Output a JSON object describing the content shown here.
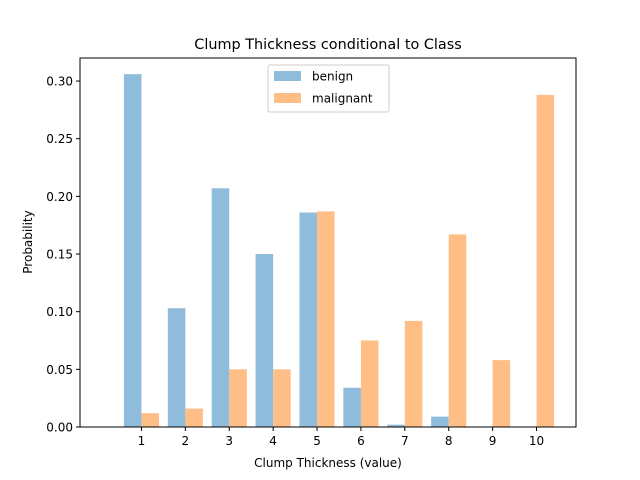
{
  "chart_data": {
    "type": "bar",
    "title": "Clump Thickness conditional to Class",
    "xlabel": "Clump Thickness (value)",
    "ylabel": "Probability",
    "categories": [
      "1",
      "2",
      "3",
      "4",
      "5",
      "6",
      "7",
      "8",
      "9",
      "10"
    ],
    "x": [
      1,
      2,
      3,
      4,
      5,
      6,
      7,
      8,
      9,
      10
    ],
    "xlim": [
      -0.4,
      10.9
    ],
    "ylim": [
      0,
      0.32
    ],
    "yticks": [
      "0.00",
      "0.05",
      "0.10",
      "0.15",
      "0.20",
      "0.25",
      "0.30"
    ],
    "ytick_values": [
      0,
      0.05,
      0.1,
      0.15,
      0.2,
      0.25,
      0.3
    ],
    "grid": false,
    "legend_position": "top-center",
    "series": [
      {
        "name": "benign",
        "color": "#8fbcdb",
        "values": [
          0.306,
          0.103,
          0.207,
          0.15,
          0.186,
          0.034,
          0.002,
          0.009,
          0.0,
          0.0
        ]
      },
      {
        "name": "malignant",
        "color": "#ffbe86",
        "values": [
          0.012,
          0.016,
          0.05,
          0.05,
          0.187,
          0.075,
          0.092,
          0.167,
          0.058,
          0.288
        ]
      }
    ]
  }
}
